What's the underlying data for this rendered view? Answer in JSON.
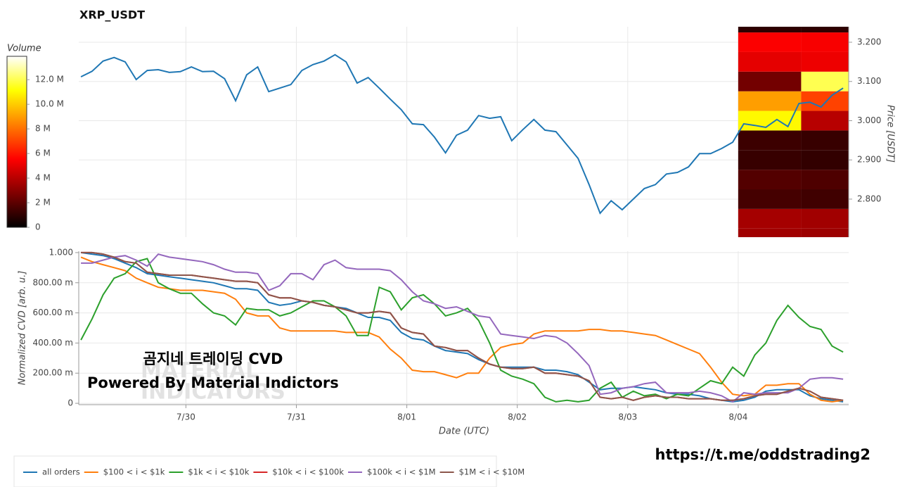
{
  "chart_data": [
    {
      "type": "line",
      "title": "XRP_USDT",
      "ylabel": "Price [USDT]",
      "axis_side": "right",
      "grid": true,
      "x": [
        29.05,
        29.15,
        29.25,
        29.35,
        29.45,
        29.55,
        29.65,
        29.75,
        29.85,
        29.95,
        30.05,
        30.15,
        30.25,
        30.35,
        30.45,
        30.55,
        30.65,
        30.75,
        30.85,
        30.95,
        31.05,
        31.15,
        31.25,
        31.35,
        31.45,
        31.55,
        31.65,
        31.75,
        31.85,
        31.95,
        32.05,
        32.15,
        32.25,
        32.35,
        32.45,
        32.55,
        32.65,
        32.75,
        32.85,
        32.95,
        33.05,
        33.15,
        33.25,
        33.35,
        33.45,
        33.55,
        33.65,
        33.75,
        33.85,
        33.95,
        34.05,
        34.15,
        34.25,
        34.35,
        34.45,
        34.55,
        34.65,
        34.75,
        34.85,
        34.95,
        35.05,
        35.15,
        35.25,
        35.35,
        35.45,
        35.55,
        35.65,
        35.75,
        35.85,
        35.95
      ],
      "xlim": [
        29.03,
        36.0
      ],
      "ylim": [
        2.703,
        3.2395
      ],
      "yticks": [
        {
          "value": 2.8,
          "label": "2.800"
        },
        {
          "value": 2.9,
          "label": "2.900"
        },
        {
          "value": 3.0,
          "label": "3.000"
        },
        {
          "value": 3.1,
          "label": "3.100"
        },
        {
          "value": 3.2,
          "label": "3.200"
        }
      ],
      "series": [
        {
          "color": "#1f77b4",
          "values": [
            3.112,
            3.126,
            3.152,
            3.161,
            3.15,
            3.105,
            3.128,
            3.13,
            3.123,
            3.125,
            3.137,
            3.125,
            3.126,
            3.107,
            3.051,
            3.117,
            3.137,
            3.074,
            3.083,
            3.092,
            3.128,
            3.143,
            3.152,
            3.168,
            3.15,
            3.096,
            3.11,
            3.083,
            3.055,
            3.028,
            2.992,
            2.99,
            2.958,
            2.918,
            2.963,
            2.976,
            3.013,
            3.006,
            3.01,
            2.949,
            2.977,
            3.003,
            2.976,
            2.972,
            2.938,
            2.904,
            2.837,
            2.764,
            2.796,
            2.773,
            2.8,
            2.827,
            2.837,
            2.864,
            2.868,
            2.882,
            2.916,
            2.916,
            2.929,
            2.945,
            2.992,
            2.988,
            2.983,
            3.003,
            2.985,
            3.044,
            3.047,
            3.035,
            3.065,
            3.083
          ]
        }
      ],
      "heatmap": {
        "title": "Volume",
        "xbins": [
          35.0,
          35.57,
          36.0
        ],
        "ybins": [
          2.675,
          2.725,
          2.775,
          2.825,
          2.875,
          2.925,
          2.975,
          3.025,
          3.075,
          3.125,
          3.175,
          3.225,
          3.275
        ],
        "values": [
          [
            3500000,
            3400000
          ],
          [
            3600000,
            3500000
          ],
          [
            1500000,
            1400000
          ],
          [
            1800000,
            1700000
          ],
          [
            1200000,
            1100000
          ],
          [
            1300000,
            1200000
          ],
          [
            11000000,
            4000000
          ],
          [
            9000000,
            7000000
          ],
          [
            2500000,
            12000000
          ],
          [
            5000000,
            5200000
          ],
          [
            5500000,
            5400000
          ],
          [
            1000000,
            1000000
          ]
        ],
        "clim": [
          0,
          13900000
        ],
        "ticks": [
          0,
          {
            "value": 2000000,
            "label": "2 M"
          },
          {
            "value": 4000000,
            "label": "4 M"
          },
          {
            "value": 6000000,
            "label": "6 M"
          },
          {
            "value": 8000000,
            "label": "8 M"
          },
          {
            "value": 10000000,
            "label": "10.0 M"
          },
          {
            "value": 12000000,
            "label": "12.0 M"
          }
        ]
      }
    },
    {
      "type": "line",
      "xlabel": "Date (UTC)",
      "ylabel": "Normalized CVD [arb. u.]",
      "grid": true,
      "legend": "bottom",
      "x": [
        29.05,
        29.15,
        29.25,
        29.35,
        29.45,
        29.55,
        29.65,
        29.75,
        29.85,
        29.95,
        30.05,
        30.15,
        30.25,
        30.35,
        30.45,
        30.55,
        30.65,
        30.75,
        30.85,
        30.95,
        31.05,
        31.15,
        31.25,
        31.35,
        31.45,
        31.55,
        31.65,
        31.75,
        31.85,
        31.95,
        32.05,
        32.15,
        32.25,
        32.35,
        32.45,
        32.55,
        32.65,
        32.75,
        32.85,
        32.95,
        33.05,
        33.15,
        33.25,
        33.35,
        33.45,
        33.55,
        33.65,
        33.75,
        33.85,
        33.95,
        34.05,
        34.15,
        34.25,
        34.35,
        34.45,
        34.55,
        34.65,
        34.75,
        34.85,
        34.95,
        35.05,
        35.15,
        35.25,
        35.35,
        35.45,
        35.55,
        35.65,
        35.75,
        35.85,
        35.95
      ],
      "xlim": [
        29.03,
        36.0
      ],
      "xticks": [
        {
          "value": 30,
          "label": "7/30"
        },
        {
          "value": 31,
          "label": "7/31"
        },
        {
          "value": 32,
          "label": "8/01"
        },
        {
          "value": 33,
          "label": "8/02"
        },
        {
          "value": 34,
          "label": "8/03"
        },
        {
          "value": 35,
          "label": "8/04"
        }
      ],
      "ylim": [
        -0.009,
        1.009
      ],
      "yticks": [
        0,
        {
          "value": 0.2,
          "label": "200.00 m"
        },
        {
          "value": 0.4,
          "label": "400.00 m"
        },
        {
          "value": 0.6,
          "label": "600.00 m"
        },
        {
          "value": 0.8,
          "label": "800.00 m"
        },
        {
          "value": 1,
          "label": "1.000"
        }
      ],
      "series": [
        {
          "name": "all orders",
          "color": "#1f77b4",
          "values": [
            1.0,
            0.99,
            0.98,
            0.96,
            0.93,
            0.9,
            0.86,
            0.85,
            0.84,
            0.83,
            0.82,
            0.81,
            0.8,
            0.78,
            0.76,
            0.76,
            0.75,
            0.67,
            0.65,
            0.66,
            0.68,
            0.67,
            0.65,
            0.64,
            0.63,
            0.6,
            0.57,
            0.57,
            0.55,
            0.47,
            0.43,
            0.42,
            0.38,
            0.35,
            0.34,
            0.33,
            0.29,
            0.26,
            0.24,
            0.24,
            0.24,
            0.24,
            0.22,
            0.22,
            0.21,
            0.19,
            0.14,
            0.09,
            0.1,
            0.1,
            0.11,
            0.1,
            0.09,
            0.07,
            0.06,
            0.06,
            0.05,
            0.03,
            0.02,
            0.01,
            0.02,
            0.04,
            0.08,
            0.09,
            0.09,
            0.09,
            0.05,
            0.03,
            0.02,
            0.01
          ]
        },
        {
          "name": "$100 < i < $1k",
          "color": "#ff7f0e",
          "values": [
            0.97,
            0.94,
            0.92,
            0.9,
            0.88,
            0.83,
            0.8,
            0.77,
            0.76,
            0.75,
            0.75,
            0.75,
            0.74,
            0.73,
            0.69,
            0.6,
            0.58,
            0.58,
            0.5,
            0.48,
            0.48,
            0.48,
            0.48,
            0.48,
            0.47,
            0.47,
            0.47,
            0.44,
            0.36,
            0.3,
            0.22,
            0.21,
            0.21,
            0.19,
            0.17,
            0.2,
            0.2,
            0.3,
            0.37,
            0.39,
            0.4,
            0.46,
            0.48,
            0.48,
            0.48,
            0.48,
            0.49,
            0.49,
            0.48,
            0.48,
            0.47,
            0.46,
            0.45,
            0.42,
            0.39,
            0.36,
            0.33,
            0.24,
            0.14,
            0.06,
            0.05,
            0.06,
            0.12,
            0.12,
            0.13,
            0.13,
            0.06,
            0.02,
            0.01,
            0.02
          ]
        },
        {
          "name": "$1k < i < $10k",
          "color": "#2ca02c",
          "values": [
            0.42,
            0.56,
            0.72,
            0.83,
            0.86,
            0.94,
            0.96,
            0.8,
            0.76,
            0.73,
            0.73,
            0.66,
            0.6,
            0.58,
            0.52,
            0.63,
            0.62,
            0.62,
            0.58,
            0.6,
            0.64,
            0.68,
            0.68,
            0.64,
            0.58,
            0.45,
            0.45,
            0.77,
            0.74,
            0.62,
            0.7,
            0.72,
            0.66,
            0.58,
            0.6,
            0.63,
            0.55,
            0.4,
            0.22,
            0.18,
            0.16,
            0.13,
            0.04,
            0.01,
            0.02,
            0.01,
            0.02,
            0.1,
            0.14,
            0.04,
            0.08,
            0.05,
            0.06,
            0.03,
            0.06,
            0.05,
            0.1,
            0.15,
            0.13,
            0.24,
            0.18,
            0.32,
            0.4,
            0.55,
            0.65,
            0.57,
            0.51,
            0.49,
            0.38,
            0.34
          ]
        },
        {
          "name": "$10k < i < $100k",
          "color": "#d62728",
          "values": [
            1.0,
            1.0,
            0.99,
            0.97,
            0.94,
            0.93,
            0.87,
            0.86,
            0.85,
            0.85,
            0.85,
            0.84,
            0.83,
            0.82,
            0.81,
            0.81,
            0.8,
            0.72,
            0.7,
            0.7,
            0.68,
            0.67,
            0.65,
            0.64,
            0.62,
            0.6,
            0.6,
            0.61,
            0.6,
            0.5,
            0.47,
            0.46,
            0.38,
            0.37,
            0.35,
            0.35,
            0.3,
            0.26,
            0.24,
            0.23,
            0.23,
            0.24,
            0.2,
            0.2,
            0.19,
            0.18,
            0.15,
            0.04,
            0.03,
            0.04,
            0.02,
            0.04,
            0.05,
            0.04,
            0.04,
            0.03,
            0.03,
            0.03,
            0.02,
            0.02,
            0.03,
            0.05,
            0.06,
            0.06,
            0.08,
            0.1,
            0.08,
            0.04,
            0.03,
            0.02
          ]
        },
        {
          "name": "$100k < i < $1M",
          "color": "#9467bd",
          "values": [
            0.93,
            0.93,
            0.95,
            0.97,
            0.98,
            0.95,
            0.91,
            0.99,
            0.97,
            0.96,
            0.95,
            0.94,
            0.92,
            0.89,
            0.87,
            0.87,
            0.86,
            0.75,
            0.78,
            0.86,
            0.86,
            0.82,
            0.92,
            0.95,
            0.9,
            0.89,
            0.89,
            0.89,
            0.88,
            0.82,
            0.74,
            0.68,
            0.66,
            0.63,
            0.64,
            0.61,
            0.58,
            0.57,
            0.46,
            0.45,
            0.44,
            0.43,
            0.45,
            0.44,
            0.4,
            0.33,
            0.25,
            0.06,
            0.07,
            0.1,
            0.11,
            0.13,
            0.14,
            0.07,
            0.07,
            0.07,
            0.08,
            0.07,
            0.05,
            0.01,
            0.07,
            0.06,
            0.07,
            0.07,
            0.07,
            0.1,
            0.16,
            0.17,
            0.17,
            0.16
          ]
        },
        {
          "name": "$1M < i < $10M",
          "color": "#8c564b",
          "values": [
            1.0,
            1.0,
            0.99,
            0.97,
            0.94,
            0.93,
            0.87,
            0.86,
            0.85,
            0.85,
            0.85,
            0.84,
            0.83,
            0.82,
            0.81,
            0.81,
            0.8,
            0.72,
            0.7,
            0.7,
            0.68,
            0.67,
            0.65,
            0.64,
            0.62,
            0.6,
            0.6,
            0.61,
            0.6,
            0.5,
            0.47,
            0.46,
            0.38,
            0.37,
            0.35,
            0.35,
            0.3,
            0.26,
            0.24,
            0.23,
            0.23,
            0.24,
            0.2,
            0.2,
            0.19,
            0.18,
            0.15,
            0.04,
            0.03,
            0.04,
            0.02,
            0.04,
            0.05,
            0.04,
            0.04,
            0.03,
            0.03,
            0.03,
            0.02,
            0.02,
            0.03,
            0.05,
            0.06,
            0.06,
            0.08,
            0.1,
            0.08,
            0.04,
            0.03,
            0.02
          ]
        }
      ],
      "watermark": [
        "MATERIAL",
        "INDICATORS"
      ],
      "annotations": [
        "곰지네 트레이딩 CVD",
        "Powered By Material Indictors",
        "https://t.me/oddstrading2"
      ]
    }
  ]
}
